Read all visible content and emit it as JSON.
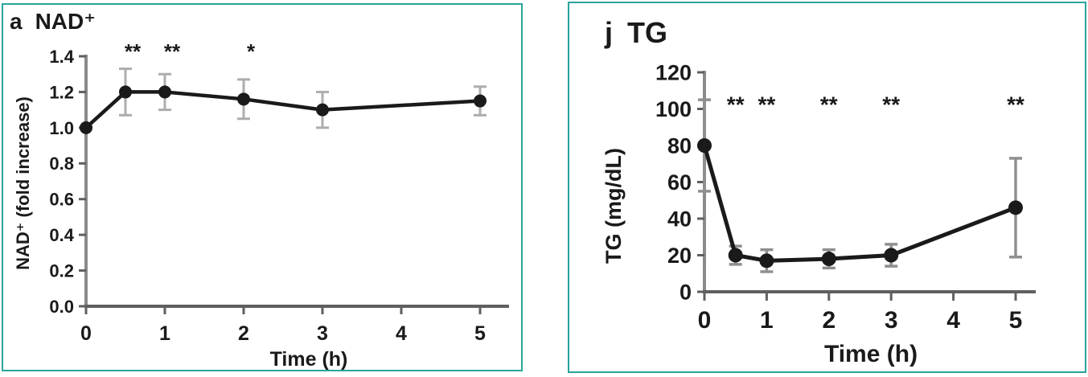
{
  "colors": {
    "panel_border": "#2aa49b",
    "background": "#ffffff",
    "line": "#1a1a1a",
    "marker": "#1a1a1a",
    "error_bar_a": "#adadad",
    "error_bar_j": "#8f8f8f",
    "y_axis": "#8a8a8a",
    "x_axis": "#5f5f5f",
    "tick": "#5f5f5f",
    "text": "#1a1a1a"
  },
  "chart_data": [
    {
      "type": "line",
      "panel_letter": "a",
      "title": "NAD⁺",
      "xlabel": "Time (h)",
      "ylabel": "NAD⁺ (fold increase)",
      "x": [
        0,
        0.5,
        1,
        2,
        3,
        5
      ],
      "y": [
        1.0,
        1.2,
        1.2,
        1.16,
        1.1,
        1.15
      ],
      "y_err": [
        0,
        0.13,
        0.1,
        0.11,
        0.1,
        0.08
      ],
      "significance": [
        {
          "x": 0.5,
          "label": "**"
        },
        {
          "x": 1,
          "label": "**"
        },
        {
          "x": 2,
          "label": "*"
        }
      ],
      "sig_y": 1.45,
      "xlim": [
        0,
        5
      ],
      "ylim": [
        0,
        1.4
      ],
      "x_ticks": [
        "0",
        "1",
        "2",
        "3",
        "4",
        "5"
      ],
      "y_ticks": [
        "0.0",
        "0.2",
        "0.4",
        "0.6",
        "0.8",
        "1.0",
        "1.2",
        "1.4"
      ],
      "grid": false,
      "legend": false,
      "marker_style": "filled-circle"
    },
    {
      "type": "line",
      "panel_letter": "j",
      "title": "TG",
      "xlabel": "Time (h)",
      "ylabel": "TG (mg/dL)",
      "x": [
        0,
        0.5,
        1,
        2,
        3,
        5
      ],
      "y": [
        80,
        20,
        17,
        18,
        20,
        46
      ],
      "y_err": [
        25,
        5,
        6,
        5,
        6,
        27
      ],
      "significance": [
        {
          "x": 0.5,
          "label": "**"
        },
        {
          "x": 1,
          "label": "**"
        },
        {
          "x": 2,
          "label": "**"
        },
        {
          "x": 3,
          "label": "**"
        },
        {
          "x": 5,
          "label": "**"
        }
      ],
      "sig_y": 105,
      "xlim": [
        0,
        5
      ],
      "ylim": [
        0,
        120
      ],
      "x_ticks": [
        "0",
        "1",
        "2",
        "3",
        "4",
        "5"
      ],
      "y_ticks": [
        "0",
        "20",
        "40",
        "60",
        "80",
        "100",
        "120"
      ],
      "grid": false,
      "legend": false,
      "marker_style": "filled-circle"
    }
  ]
}
